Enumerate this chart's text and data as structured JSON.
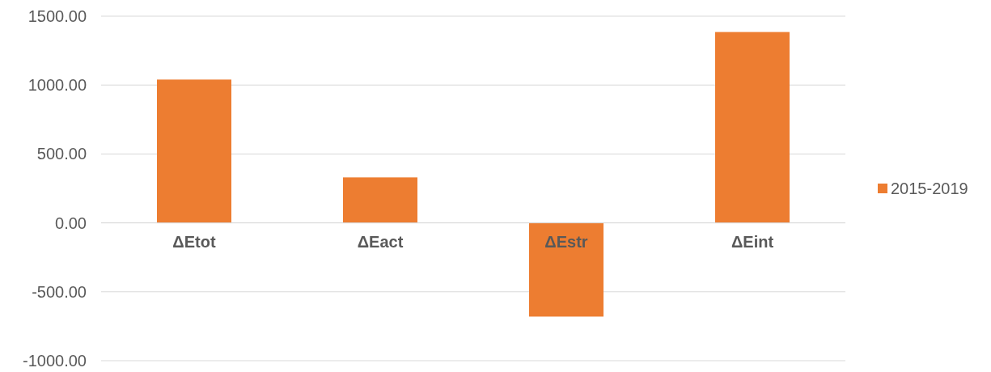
{
  "chart_data": {
    "type": "bar",
    "categories": [
      "ΔEtot",
      "ΔEact",
      "ΔEstr",
      "ΔEint"
    ],
    "series": [
      {
        "name": "2015-2019",
        "color": "#ed7d31",
        "values": [
          1040,
          330,
          -680,
          1385
        ]
      }
    ],
    "ylim": [
      -1000,
      1500
    ],
    "yticks": [
      {
        "value": -1000,
        "label": "-1000.00"
      },
      {
        "value": -500,
        "label": "-500.00"
      },
      {
        "value": 0,
        "label": "0.00"
      },
      {
        "value": 500,
        "label": "500.00"
      },
      {
        "value": 1000,
        "label": "1000.00"
      },
      {
        "value": 1500,
        "label": "1500.00"
      }
    ],
    "grid": "y",
    "legend": "right"
  }
}
